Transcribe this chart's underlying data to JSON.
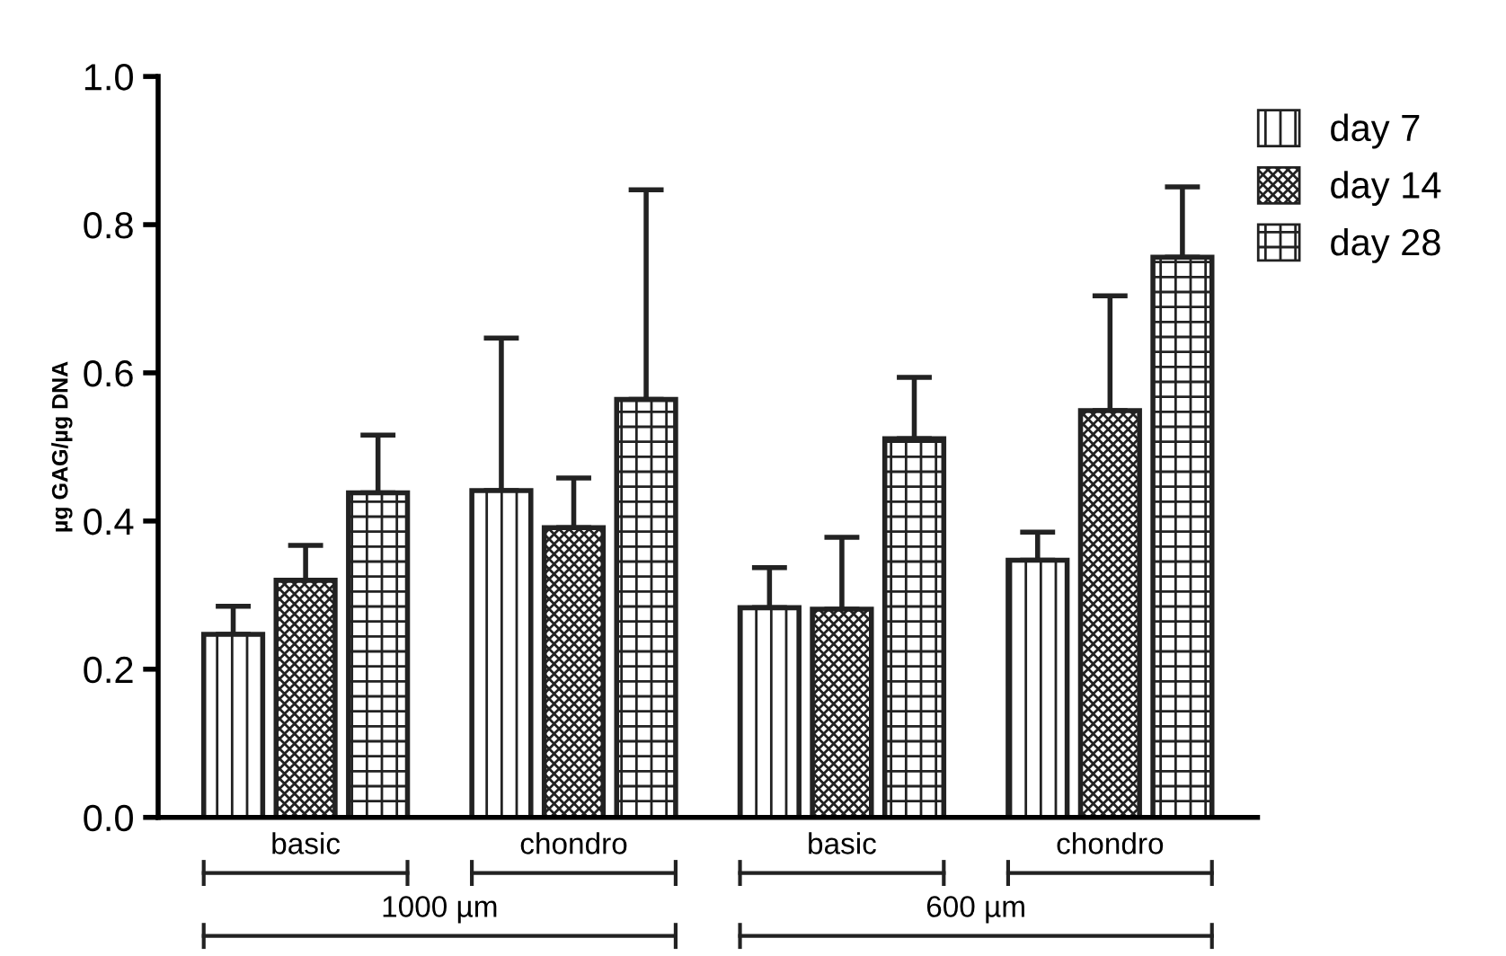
{
  "chart_data": {
    "type": "bar",
    "ylabel": "µg GAG/µg DNA",
    "categories": [
      "basic",
      "chondro",
      "basic",
      "chondro"
    ],
    "series": [
      {
        "name": "day 7",
        "color": "#222222",
        "values": [
          0.247,
          0.441,
          0.283,
          0.347
        ],
        "errors": [
          [
            0.247,
            0.285
          ],
          [
            0.441,
            0.647
          ],
          [
            0.283,
            0.337
          ],
          [
            0.347,
            0.385
          ]
        ]
      },
      {
        "name": "day 14",
        "color": "#222222",
        "values": [
          0.32,
          0.391,
          0.281,
          0.549
        ],
        "errors": [
          [
            0.32,
            0.367
          ],
          [
            0.391,
            0.458
          ],
          [
            0.281,
            0.378
          ],
          [
            0.549,
            0.704
          ]
        ]
      },
      {
        "name": "day 28",
        "color": "#222222",
        "values": [
          0.438,
          0.564,
          0.511,
          0.756
        ],
        "errors": [
          [
            0.438,
            0.516
          ],
          [
            0.564,
            0.847
          ],
          [
            0.511,
            0.594
          ],
          [
            0.756,
            0.851
          ]
        ]
      }
    ],
    "annotations": [
      "1000 µm",
      "600 µm"
    ],
    "ylim": [
      0,
      1.0
    ],
    "yticks": [
      {
        "value": 0,
        "label": "0.0"
      },
      0.2,
      0.4,
      0.6,
      0.8,
      {
        "value": 1.0,
        "label": "1.0"
      }
    ],
    "grid": false,
    "legend": "top right"
  }
}
